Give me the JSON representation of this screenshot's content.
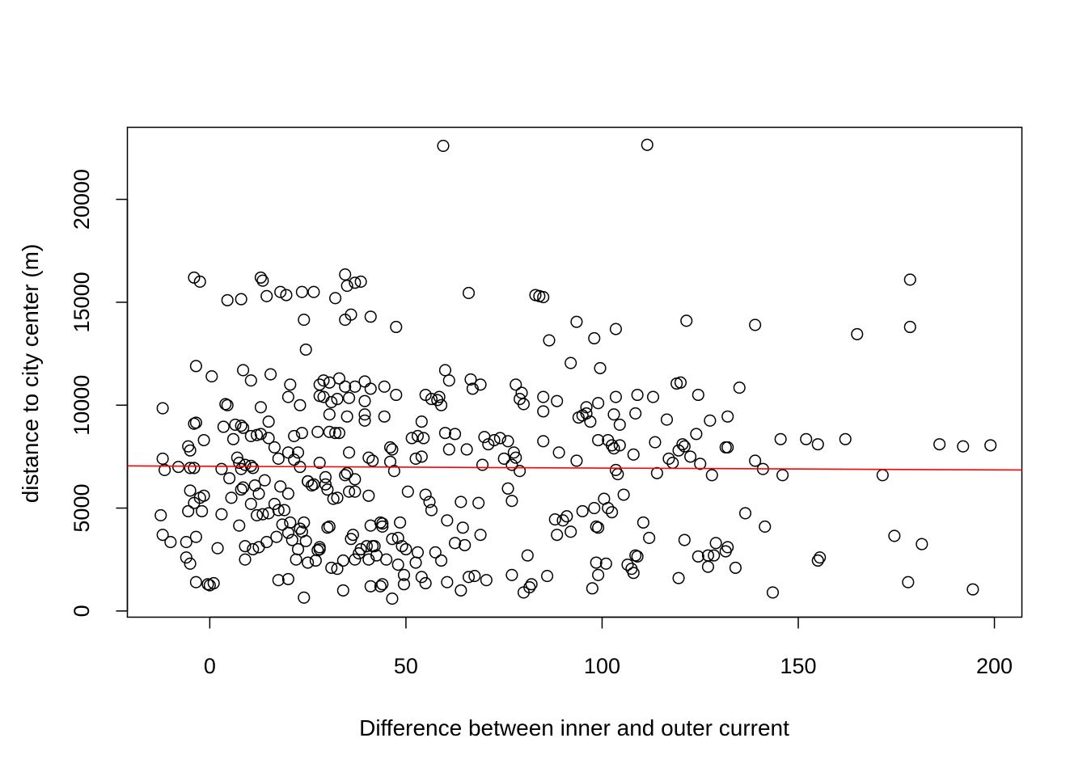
{
  "chart_data": {
    "type": "scatter",
    "title": "",
    "xlabel": "Difference between inner and outer current",
    "ylabel": "distance to city center (m)",
    "xlim": [
      -21,
      207
    ],
    "ylim": [
      -300,
      23500
    ],
    "x_ticks": [
      0,
      50,
      100,
      150,
      200
    ],
    "y_ticks": [
      0,
      5000,
      10000,
      15000,
      20000
    ],
    "x_tick_labels": [
      "0",
      "50",
      "100",
      "150",
      "200"
    ],
    "y_tick_labels": [
      "0",
      "5000",
      "10000",
      "15000",
      "20000"
    ],
    "grid": false,
    "legend": "none",
    "marker": "open-circle",
    "marker_color": "#000000",
    "trend_line": {
      "color": "#ff0000",
      "x": [
        -21,
        207
      ],
      "y": [
        7050,
        6850
      ]
    },
    "points": [
      [
        59.5,
        22600
      ],
      [
        111.5,
        22650
      ],
      [
        -4,
        16200
      ],
      [
        -2.5,
        16000
      ],
      [
        13,
        16200
      ],
      [
        13.5,
        16050
      ],
      [
        34.5,
        16350
      ],
      [
        38.5,
        16000
      ],
      [
        37,
        15950
      ],
      [
        35,
        15800
      ],
      [
        178.5,
        16100
      ],
      [
        4.5,
        15100
      ],
      [
        8,
        15150
      ],
      [
        14.5,
        15300
      ],
      [
        18,
        15500
      ],
      [
        19.5,
        15350
      ],
      [
        23.5,
        15500
      ],
      [
        26.5,
        15500
      ],
      [
        32,
        15200
      ],
      [
        66,
        15450
      ],
      [
        83,
        15350
      ],
      [
        84,
        15300
      ],
      [
        85,
        15250
      ],
      [
        24,
        14150
      ],
      [
        34.5,
        14150
      ],
      [
        36,
        14400
      ],
      [
        41,
        14300
      ],
      [
        47.5,
        13800
      ],
      [
        93.5,
        14050
      ],
      [
        98,
        13250
      ],
      [
        103.5,
        13700
      ],
      [
        121.5,
        14100
      ],
      [
        139,
        13900
      ],
      [
        165,
        13450
      ],
      [
        178.5,
        13800
      ],
      [
        86.5,
        13150
      ],
      [
        24.5,
        12700
      ],
      [
        -3.5,
        11900
      ],
      [
        0.5,
        11400
      ],
      [
        8.5,
        11700
      ],
      [
        10.5,
        11200
      ],
      [
        15.5,
        11500
      ],
      [
        20.5,
        11000
      ],
      [
        28,
        11000
      ],
      [
        29,
        11200
      ],
      [
        30.5,
        11100
      ],
      [
        33,
        11300
      ],
      [
        34.5,
        10900
      ],
      [
        37,
        10900
      ],
      [
        39.5,
        11150
      ],
      [
        41,
        10800
      ],
      [
        44.5,
        10900
      ],
      [
        47.5,
        10500
      ],
      [
        55,
        10500
      ],
      [
        56.5,
        10300
      ],
      [
        58.5,
        10400
      ],
      [
        60,
        11700
      ],
      [
        61,
        11200
      ],
      [
        66.5,
        11250
      ],
      [
        67,
        10800
      ],
      [
        69,
        11000
      ],
      [
        78,
        11000
      ],
      [
        79.5,
        10600
      ],
      [
        85,
        10400
      ],
      [
        88.5,
        10200
      ],
      [
        92,
        12050
      ],
      [
        99.5,
        11800
      ],
      [
        103.5,
        10400
      ],
      [
        109,
        10500
      ],
      [
        113,
        10400
      ],
      [
        119,
        11050
      ],
      [
        120,
        11100
      ],
      [
        124.5,
        10500
      ],
      [
        135,
        10850
      ],
      [
        -12,
        9850
      ],
      [
        -4,
        9100
      ],
      [
        -3.5,
        9150
      ],
      [
        4,
        10050
      ],
      [
        4.5,
        10000
      ],
      [
        6.5,
        9050
      ],
      [
        8,
        9000
      ],
      [
        13,
        9900
      ],
      [
        15,
        9200
      ],
      [
        20,
        10400
      ],
      [
        23,
        10000
      ],
      [
        28,
        10450
      ],
      [
        29,
        10400
      ],
      [
        30.5,
        9550
      ],
      [
        31,
        10150
      ],
      [
        32.5,
        10300
      ],
      [
        35,
        9450
      ],
      [
        35.5,
        10350
      ],
      [
        39.5,
        10200
      ],
      [
        39.5,
        9250
      ],
      [
        39.5,
        9550
      ],
      [
        44.5,
        9450
      ],
      [
        54,
        9200
      ],
      [
        58,
        10250
      ],
      [
        59,
        10000
      ],
      [
        62.5,
        8600
      ],
      [
        79,
        10300
      ],
      [
        80,
        10050
      ],
      [
        85,
        9700
      ],
      [
        94,
        9400
      ],
      [
        95,
        9500
      ],
      [
        96,
        9900
      ],
      [
        96,
        9600
      ],
      [
        97,
        9200
      ],
      [
        99,
        10100
      ],
      [
        103,
        9550
      ],
      [
        104.5,
        9050
      ],
      [
        108.5,
        9600
      ],
      [
        116.5,
        9300
      ],
      [
        127.5,
        9250
      ],
      [
        132,
        9450
      ],
      [
        -12,
        7400
      ],
      [
        -5.5,
        8000
      ],
      [
        -5,
        7800
      ],
      [
        -1.5,
        8300
      ],
      [
        3.5,
        8950
      ],
      [
        6,
        8350
      ],
      [
        8.5,
        8900
      ],
      [
        10.5,
        8500
      ],
      [
        12,
        8550
      ],
      [
        13,
        8600
      ],
      [
        15,
        8400
      ],
      [
        16.5,
        7950
      ],
      [
        21.5,
        8500
      ],
      [
        22.5,
        7700
      ],
      [
        23.5,
        8650
      ],
      [
        27.5,
        8700
      ],
      [
        30.5,
        8700
      ],
      [
        32,
        8650
      ],
      [
        33,
        8650
      ],
      [
        35.5,
        7700
      ],
      [
        46,
        7950
      ],
      [
        46.5,
        7850
      ],
      [
        51.5,
        8400
      ],
      [
        53,
        8500
      ],
      [
        54.5,
        8400
      ],
      [
        60,
        8650
      ],
      [
        61,
        7850
      ],
      [
        65.5,
        7850
      ],
      [
        70,
        8450
      ],
      [
        71,
        8100
      ],
      [
        72.5,
        8300
      ],
      [
        74,
        8400
      ],
      [
        76,
        8250
      ],
      [
        77.5,
        7700
      ],
      [
        78,
        7450
      ],
      [
        85,
        8250
      ],
      [
        89,
        7700
      ],
      [
        99,
        8300
      ],
      [
        101.5,
        8300
      ],
      [
        102.5,
        8050
      ],
      [
        103,
        7900
      ],
      [
        104.5,
        8050
      ],
      [
        108,
        7600
      ],
      [
        113.5,
        8200
      ],
      [
        117,
        7400
      ],
      [
        119.5,
        7800
      ],
      [
        120.5,
        8100
      ],
      [
        121,
        8000
      ],
      [
        122.5,
        7500
      ],
      [
        124,
        8600
      ],
      [
        125,
        7150
      ],
      [
        128,
        6600
      ],
      [
        132,
        7950
      ],
      [
        139,
        7300
      ],
      [
        145.5,
        8350
      ],
      [
        152,
        8350
      ],
      [
        155,
        8100
      ],
      [
        162,
        8350
      ],
      [
        171.5,
        6600
      ],
      [
        186,
        8100
      ],
      [
        192,
        8000
      ],
      [
        199,
        8050
      ],
      [
        -11.5,
        6850
      ],
      [
        -8,
        7000
      ],
      [
        -5,
        6950
      ],
      [
        -4,
        6950
      ],
      [
        3,
        6900
      ],
      [
        5,
        6450
      ],
      [
        7,
        7450
      ],
      [
        7.5,
        7200
      ],
      [
        8,
        6900
      ],
      [
        9,
        7100
      ],
      [
        10.5,
        7050
      ],
      [
        11,
        6950
      ],
      [
        17.5,
        7400
      ],
      [
        20,
        7700
      ],
      [
        21.5,
        7350
      ],
      [
        23,
        7000
      ],
      [
        25,
        6300
      ],
      [
        26,
        6100
      ],
      [
        28,
        7200
      ],
      [
        29.5,
        6500
      ],
      [
        34.5,
        6600
      ],
      [
        35,
        6700
      ],
      [
        37,
        6400
      ],
      [
        40.5,
        7450
      ],
      [
        41.5,
        7300
      ],
      [
        46,
        7250
      ],
      [
        47,
        6800
      ],
      [
        52.5,
        7400
      ],
      [
        54,
        7500
      ],
      [
        69.5,
        7100
      ],
      [
        75,
        7400
      ],
      [
        77,
        7100
      ],
      [
        79,
        6800
      ],
      [
        93.5,
        7300
      ],
      [
        103.5,
        6850
      ],
      [
        104,
        6650
      ],
      [
        114,
        6700
      ],
      [
        118,
        7200
      ],
      [
        131.5,
        7950
      ],
      [
        141,
        6900
      ],
      [
        146,
        6600
      ],
      [
        -12.5,
        4650
      ],
      [
        -12,
        3700
      ],
      [
        -10,
        3350
      ],
      [
        -6,
        3350
      ],
      [
        -5.5,
        4850
      ],
      [
        -5,
        5850
      ],
      [
        -4,
        5250
      ],
      [
        -3.5,
        3600
      ],
      [
        -2.5,
        5500
      ],
      [
        -2,
        4850
      ],
      [
        -1.5,
        5600
      ],
      [
        1,
        1350
      ],
      [
        2,
        3050
      ],
      [
        3,
        4700
      ],
      [
        5.5,
        5500
      ],
      [
        7.5,
        4150
      ],
      [
        8,
        5900
      ],
      [
        8.5,
        6000
      ],
      [
        9,
        3150
      ],
      [
        10.5,
        5200
      ],
      [
        11.5,
        6100
      ],
      [
        12,
        4650
      ],
      [
        12.5,
        5700
      ],
      [
        13.5,
        4700
      ],
      [
        14,
        6350
      ],
      [
        14.5,
        3350
      ],
      [
        15,
        4750
      ],
      [
        16.5,
        5200
      ],
      [
        17,
        3600
      ],
      [
        17.5,
        4900
      ],
      [
        18,
        6050
      ],
      [
        18.5,
        4200
      ],
      [
        19,
        4900
      ],
      [
        20,
        5700
      ],
      [
        20,
        3800
      ],
      [
        20.5,
        4300
      ],
      [
        21,
        3450
      ],
      [
        22.5,
        3000
      ],
      [
        23,
        4000
      ],
      [
        23.5,
        3850
      ],
      [
        24,
        4300
      ],
      [
        24.5,
        3400
      ],
      [
        25,
        6300
      ],
      [
        26.5,
        6150
      ],
      [
        27.5,
        2950
      ],
      [
        28,
        3100
      ],
      [
        29.5,
        6150
      ],
      [
        30,
        5900
      ],
      [
        30.5,
        4100
      ],
      [
        31.5,
        5450
      ],
      [
        32.5,
        5500
      ],
      [
        34,
        2450
      ],
      [
        35.5,
        5800
      ],
      [
        36,
        3500
      ],
      [
        36.5,
        3700
      ],
      [
        37,
        5800
      ],
      [
        38,
        2800
      ],
      [
        38.5,
        3000
      ],
      [
        40,
        3150
      ],
      [
        40.5,
        5600
      ],
      [
        41,
        4150
      ],
      [
        41.5,
        3150
      ],
      [
        42,
        3150
      ],
      [
        42.5,
        2700
      ],
      [
        43.5,
        4300
      ],
      [
        44,
        4250
      ],
      [
        44,
        4100
      ],
      [
        46.5,
        3500
      ],
      [
        48,
        3550
      ],
      [
        48.5,
        4300
      ],
      [
        49,
        3150
      ],
      [
        50,
        3000
      ],
      [
        50.5,
        5800
      ],
      [
        53,
        2850
      ],
      [
        55,
        5650
      ],
      [
        56,
        5300
      ],
      [
        56.5,
        4900
      ],
      [
        57.5,
        2850
      ],
      [
        59,
        2450
      ],
      [
        60.5,
        4400
      ],
      [
        62.5,
        3300
      ],
      [
        64,
        5300
      ],
      [
        64.5,
        4050
      ],
      [
        65,
        3200
      ],
      [
        68.5,
        5250
      ],
      [
        69,
        3700
      ],
      [
        76,
        5950
      ],
      [
        77,
        5350
      ],
      [
        81,
        2700
      ],
      [
        88,
        4450
      ],
      [
        88.5,
        3700
      ],
      [
        90,
        4400
      ],
      [
        91,
        4600
      ],
      [
        92,
        3850
      ],
      [
        95,
        4850
      ],
      [
        98,
        5000
      ],
      [
        98.5,
        4100
      ],
      [
        99,
        4050
      ],
      [
        100.5,
        5450
      ],
      [
        101.5,
        5000
      ],
      [
        102.5,
        4800
      ],
      [
        105.5,
        5650
      ],
      [
        110.5,
        4300
      ],
      [
        112,
        3550
      ],
      [
        121,
        3450
      ],
      [
        124.5,
        2650
      ],
      [
        127,
        2700
      ],
      [
        128.5,
        2700
      ],
      [
        129,
        3300
      ],
      [
        131.5,
        2900
      ],
      [
        132,
        3100
      ],
      [
        136.5,
        4750
      ],
      [
        141.5,
        4100
      ],
      [
        174.5,
        3650
      ],
      [
        181.5,
        3250
      ],
      [
        -6,
        2600
      ],
      [
        -3.5,
        1400
      ],
      [
        -0.5,
        1300
      ],
      [
        0,
        1250
      ],
      [
        9,
        2500
      ],
      [
        11,
        3000
      ],
      [
        12.5,
        3100
      ],
      [
        17.5,
        1500
      ],
      [
        20,
        1550
      ],
      [
        22,
        2500
      ],
      [
        24,
        650
      ],
      [
        25,
        2350
      ],
      [
        27,
        2450
      ],
      [
        28,
        3000
      ],
      [
        30,
        4050
      ],
      [
        31,
        2100
      ],
      [
        32.5,
        2050
      ],
      [
        34,
        1000
      ],
      [
        37,
        2500
      ],
      [
        40.5,
        2500
      ],
      [
        41,
        1200
      ],
      [
        43.5,
        1200
      ],
      [
        44,
        1300
      ],
      [
        45,
        2500
      ],
      [
        46.5,
        600
      ],
      [
        48,
        2250
      ],
      [
        49.5,
        1750
      ],
      [
        49.5,
        1300
      ],
      [
        52.5,
        2350
      ],
      [
        54,
        1650
      ],
      [
        55,
        1350
      ],
      [
        60.5,
        1400
      ],
      [
        64,
        1000
      ],
      [
        66,
        1650
      ],
      [
        67.5,
        1700
      ],
      [
        70.5,
        1500
      ],
      [
        77,
        1750
      ],
      [
        80,
        900
      ],
      [
        81.5,
        1150
      ],
      [
        82,
        1300
      ],
      [
        86,
        1700
      ],
      [
        97.5,
        1100
      ],
      [
        98.5,
        2350
      ],
      [
        99,
        1750
      ],
      [
        101,
        2300
      ],
      [
        106.5,
        2250
      ],
      [
        107.5,
        2050
      ],
      [
        108,
        1850
      ],
      [
        108.5,
        2700
      ],
      [
        109,
        2650
      ],
      [
        119.5,
        1600
      ],
      [
        127,
        2150
      ],
      [
        134,
        2100
      ],
      [
        143.5,
        900
      ],
      [
        155,
        2450
      ],
      [
        155.5,
        2600
      ],
      [
        178,
        1400
      ],
      [
        194.5,
        1050
      ],
      [
        -5,
        2300
      ]
    ]
  }
}
